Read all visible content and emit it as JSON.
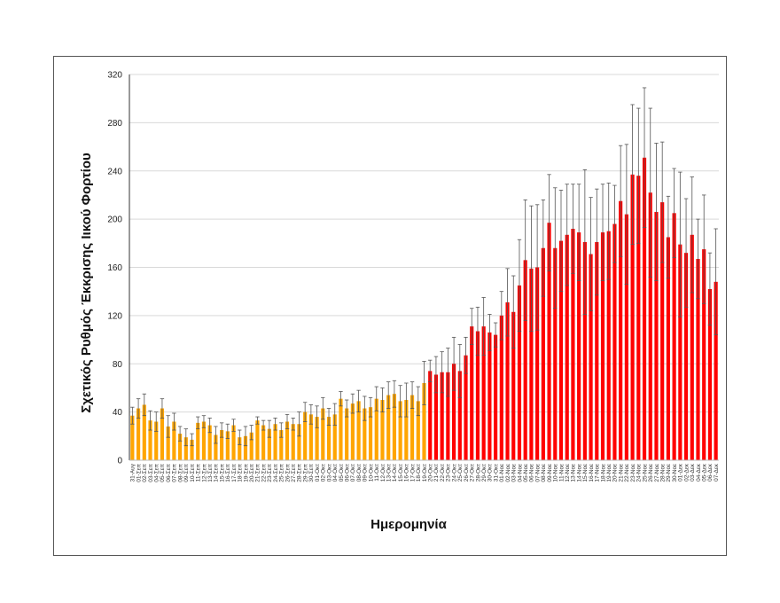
{
  "chart_data": {
    "type": "bar",
    "title": "",
    "xlabel": "Ημερομηνία",
    "ylabel": "Σχετικός Ρυθμός Έκκρισης Ιικού Φορτίου",
    "ylim": [
      0,
      320
    ],
    "yticks": [
      0,
      40,
      80,
      120,
      160,
      200,
      240,
      280,
      320
    ],
    "grid": true,
    "legend": "none",
    "colors": {
      "early": "#FFA500",
      "late": "#FF0000",
      "error": "#555555",
      "grid": "#D9D9D9"
    },
    "red_from_category": "20-Οκτ",
    "categories": [
      "31-Αυγ",
      "01-Σεπ",
      "02-Σεπ",
      "03-Σεπ",
      "04-Σεπ",
      "05-Σεπ",
      "06-Σεπ",
      "07-Σεπ",
      "08-Σεπ",
      "09-Σεπ",
      "10-Σεπ",
      "11-Σεπ",
      "12-Σεπ",
      "13-Σεπ",
      "14-Σεπ",
      "15-Σεπ",
      "16-Σεπ",
      "17-Σεπ",
      "18-Σεπ",
      "19-Σεπ",
      "20-Σεπ",
      "21-Σεπ",
      "22-Σεπ",
      "23-Σεπ",
      "24-Σεπ",
      "25-Σεπ",
      "26-Σεπ",
      "27-Σεπ",
      "28-Σεπ",
      "29-Σεπ",
      "30-Σεπ",
      "01-Οκτ",
      "02-Οκτ",
      "03-Οκτ",
      "04-Οκτ",
      "05-Οκτ",
      "06-Οκτ",
      "07-Οκτ",
      "08-Οκτ",
      "09-Οκτ",
      "10-Οκτ",
      "11-Οκτ",
      "12-Οκτ",
      "13-Οκτ",
      "14-Οκτ",
      "15-Οκτ",
      "16-Οκτ",
      "17-Οκτ",
      "18-Οκτ",
      "19-Οκτ",
      "20-Οκτ",
      "21-Οκτ",
      "22-Οκτ",
      "23-Οκτ",
      "24-Οκτ",
      "25-Οκτ",
      "26-Οκτ",
      "27-Οκτ",
      "28-Οκτ",
      "29-Οκτ",
      "30-Οκτ",
      "31-Οκτ",
      "01-Νοε",
      "02-Νοε",
      "03-Νοε",
      "04-Νοε",
      "05-Νοε",
      "06-Νοε",
      "07-Νοε",
      "08-Νοε",
      "09-Νοε",
      "10-Νοε",
      "11-Νοε",
      "12-Νοε",
      "13-Νοε",
      "14-Νοε",
      "15-Νοε",
      "16-Νοε",
      "17-Νοε",
      "18-Νοε",
      "19-Νοε",
      "20-Νοε",
      "21-Νοε",
      "22-Νοε",
      "23-Νοε",
      "24-Νοε",
      "25-Νοε",
      "26-Νοε",
      "27-Νοε",
      "28-Νοε",
      "29-Νοε",
      "30-Νοε",
      "01-Δεκ",
      "02-Δεκ",
      "03-Δεκ",
      "04-Δεκ",
      "05-Δεκ",
      "06-Δεκ",
      "07-Δεκ"
    ],
    "values": [
      37,
      43,
      46,
      33,
      32,
      43,
      28,
      32,
      22,
      19,
      17,
      31,
      32,
      29,
      21,
      25,
      24,
      29,
      19,
      20,
      23,
      33,
      29,
      26,
      30,
      25,
      32,
      30,
      30,
      40,
      38,
      36,
      43,
      36,
      38,
      51,
      43,
      47,
      49,
      43,
      44,
      51,
      50,
      54,
      55,
      49,
      50,
      54,
      49,
      64,
      74,
      71,
      73,
      73,
      80,
      74,
      87,
      111,
      107,
      111,
      106,
      104,
      120,
      131,
      123,
      145,
      166,
      159,
      160,
      176,
      197,
      176,
      182,
      187,
      192,
      189,
      181,
      171,
      181,
      189,
      190,
      196,
      215,
      204,
      237,
      236,
      251,
      222,
      206,
      214,
      185,
      205,
      179,
      172,
      187,
      167,
      175,
      142,
      148
    ],
    "errors": [
      7,
      8,
      9,
      8,
      8,
      8,
      9,
      7,
      6,
      7,
      5,
      5,
      5,
      6,
      7,
      6,
      6,
      5,
      6,
      8,
      6,
      3,
      4,
      7,
      5,
      6,
      6,
      5,
      10,
      8,
      8,
      9,
      9,
      7,
      9,
      6,
      7,
      8,
      9,
      10,
      8,
      10,
      10,
      11,
      11,
      13,
      14,
      11,
      12,
      18,
      9,
      15,
      17,
      20,
      22,
      22,
      15,
      15,
      20,
      24,
      15,
      10,
      20,
      28,
      30,
      38,
      50,
      52,
      52,
      40,
      40,
      50,
      42,
      42,
      37,
      40,
      60,
      47,
      44,
      40,
      40,
      32,
      46,
      58,
      58,
      56,
      58,
      70,
      57,
      50,
      34,
      37,
      60,
      45,
      48,
      33,
      45,
      30,
      44
    ]
  }
}
